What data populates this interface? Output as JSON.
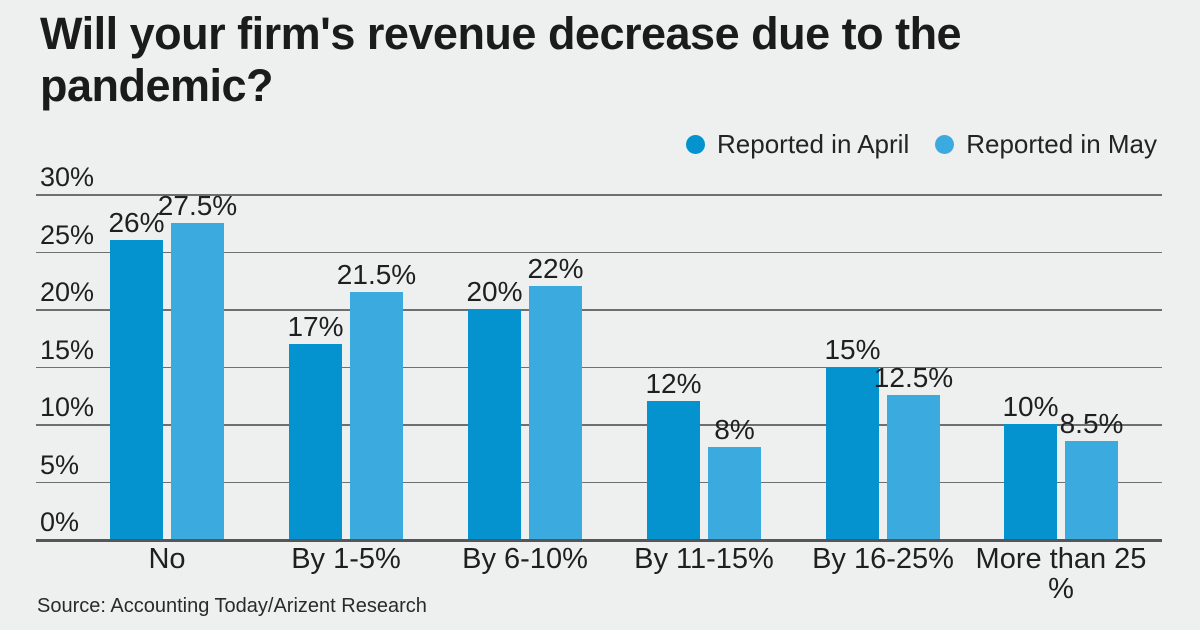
{
  "title": "Will your firm's revenue decrease due to the pandemic?",
  "legend": {
    "items": [
      {
        "label": "Reported in April",
        "color": "#0493ce"
      },
      {
        "label": "Reported in May",
        "color": "#3babdf"
      }
    ]
  },
  "source": "Source: Accounting Today/Arizent Research",
  "colors": {
    "background": "#eef0ef",
    "april_blue": "#0493ce",
    "may_blue": "#3babdf",
    "gridline": "#6e6f72",
    "baseline": "#55565a",
    "text": "#1f1f1f"
  },
  "chart_data": {
    "type": "bar",
    "categories": [
      "No",
      "By 1-5%",
      "By 6-10%",
      "By 11-15%",
      "By 16-25%",
      "More than 25 %"
    ],
    "series": [
      {
        "name": "Reported in April",
        "color": "#0493ce",
        "values": [
          26,
          17,
          20,
          12,
          15,
          10
        ]
      },
      {
        "name": "Reported in May",
        "color": "#3babdf",
        "values": [
          27.5,
          21.5,
          22,
          8,
          12.5,
          8.5
        ]
      }
    ],
    "value_labels": [
      [
        "26%",
        "17%",
        "20%",
        "12%",
        "15%",
        "10%"
      ],
      [
        "27.5%",
        "21.5%",
        "22%",
        "8%",
        "12.5%",
        "8.5%"
      ]
    ],
    "yticks": [
      "30%",
      "25%",
      "20%",
      "15%",
      "10%",
      "5%",
      "0%"
    ],
    "ylim": [
      0,
      30
    ],
    "xlabel": "",
    "ylabel": "",
    "grid": true,
    "legend_position": "top-right"
  }
}
